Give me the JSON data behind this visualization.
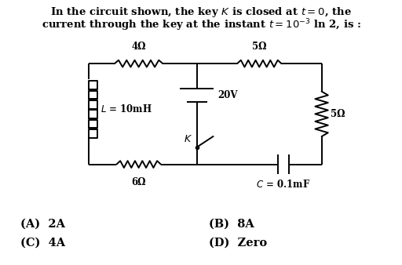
{
  "question_line1": "In the circuit shown, the key $K$ is closed at $t = 0$, the",
  "question_line2": "current through the key at the instant $t= 10^{-3}$ ln 2, is :",
  "bg_color": "#ffffff",
  "text_color": "#000000",
  "options": [
    [
      "(A)  2A",
      "(B)  8A"
    ],
    [
      "(C)  4A",
      "(D)  Zero"
    ]
  ],
  "circuit": {
    "L": 0.22,
    "R": 0.8,
    "T": 0.76,
    "B": 0.38,
    "MX": 0.49,
    "resistor_4_label": "4Ω",
    "resistor_5top_label": "5Ω",
    "resistor_5right_label": "5Ω",
    "resistor_6_label": "6Ω",
    "inductor_label": "$L$ = 10mH",
    "battery_label": "20V",
    "key_label": "$K$",
    "cap_label": "$C$ = 0.1mF"
  }
}
